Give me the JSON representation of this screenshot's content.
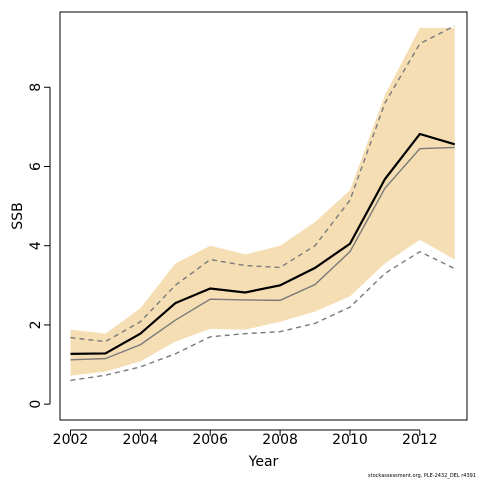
{
  "chart_data": {
    "type": "line",
    "title": "",
    "xlabel": "Year",
    "ylabel": "SSB",
    "xlim": [
      2001.7,
      2013.35
    ],
    "ylim": [
      -0.4,
      9.9
    ],
    "xticks": [
      2002,
      2004,
      2006,
      2008,
      2010,
      2012
    ],
    "yticks": [
      0,
      2,
      4,
      6,
      8
    ],
    "grid": false,
    "legend": "none",
    "x": [
      2002,
      2003,
      2004,
      2005,
      2006,
      2007,
      2008,
      2009,
      2010,
      2011,
      2012,
      2013
    ],
    "band": {
      "color": "#f5deb3",
      "lower": [
        0.72,
        0.82,
        1.08,
        1.58,
        1.9,
        1.88,
        2.08,
        2.34,
        2.72,
        3.55,
        4.15,
        3.65
      ],
      "upper": [
        1.88,
        1.78,
        2.42,
        3.55,
        4.0,
        3.78,
        4.0,
        4.6,
        5.4,
        7.8,
        9.5,
        9.5
      ]
    },
    "series": [
      {
        "values": [
          1.27,
          1.28,
          1.78,
          2.55,
          2.92,
          2.82,
          3.0,
          3.44,
          4.05,
          5.68,
          6.82,
          6.56
        ],
        "color": "#000000",
        "style": "solid",
        "width": 2.2
      },
      {
        "values": [
          1.12,
          1.15,
          1.5,
          2.12,
          2.65,
          2.63,
          2.62,
          3.02,
          3.85,
          5.45,
          6.45,
          6.48
        ],
        "color": "#7a7a7a",
        "style": "solid",
        "width": 1.4
      },
      {
        "values": [
          1.68,
          1.58,
          2.08,
          3.0,
          3.65,
          3.5,
          3.45,
          4.0,
          5.15,
          7.6,
          9.1,
          9.55
        ],
        "color": "#7a7a7a",
        "style": "dashed",
        "width": 1.4
      },
      {
        "values": [
          0.6,
          0.73,
          0.94,
          1.27,
          1.7,
          1.78,
          1.83,
          2.04,
          2.45,
          3.3,
          3.85,
          3.42
        ],
        "color": "#7a7a7a",
        "style": "dashed",
        "width": 1.4
      }
    ],
    "credit": "stockassessment.org, PLE-2432_DEL r4391"
  }
}
